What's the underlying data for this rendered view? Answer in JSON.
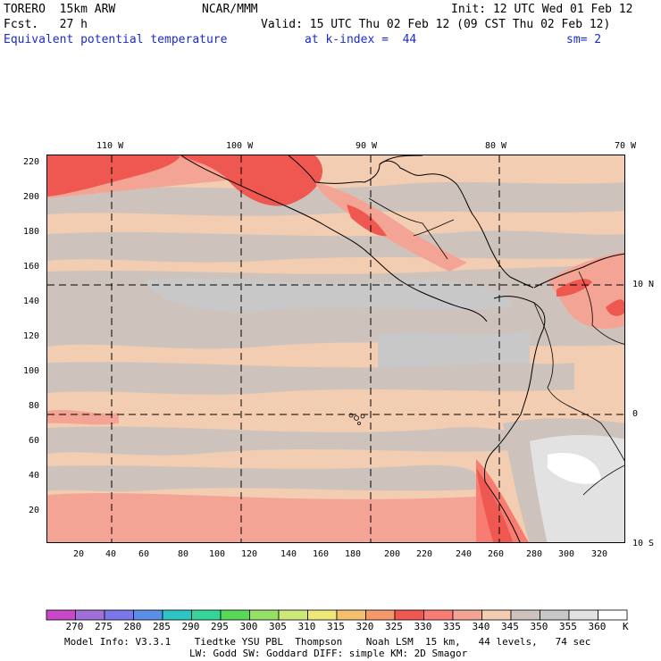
{
  "header": {
    "model": "TORERO  15km ARW",
    "org": "NCAR/MMM",
    "init": "Init: 12 UTC Wed 01 Feb 12",
    "fcst": "Fcst.   27 h",
    "valid": "Valid: 15 UTC Thu 02 Feb 12 (09 CST Thu 02 Feb 12)",
    "field": "Equivalent potential temperature",
    "level": "at k-index =  44",
    "smooth": "sm= 2"
  },
  "map": {
    "lon_labels": [
      "110 W",
      "100 W",
      "90 W",
      "80 W",
      "70 W"
    ],
    "lat_labels": [
      "10 N",
      "0",
      "10 S"
    ],
    "x_ticks": [
      "20",
      "40",
      "60",
      "80",
      "100",
      "120",
      "140",
      "160",
      "180",
      "200",
      "220",
      "240",
      "260",
      "280",
      "300",
      "320"
    ],
    "y_ticks": [
      "220",
      "200",
      "180",
      "160",
      "140",
      "120",
      "100",
      "80",
      "60",
      "40",
      "20"
    ]
  },
  "colorbar": {
    "labels": [
      "270",
      "275",
      "280",
      "285",
      "290",
      "295",
      "300",
      "305",
      "310",
      "315",
      "320",
      "325",
      "330",
      "335",
      "340",
      "345",
      "350",
      "355",
      "360"
    ],
    "unit": "K",
    "colors": [
      "#c848c8",
      "#a070d8",
      "#7a78e8",
      "#5a8ee8",
      "#2ec4c4",
      "#36d49a",
      "#58d858",
      "#96e068",
      "#cce878",
      "#eee878",
      "#f4c070",
      "#f49a6a",
      "#ee5850",
      "#f87c72",
      "#f4a494",
      "#f2cdb2",
      "#cdc3bc",
      "#c8c8c8",
      "#e2e2e2",
      "#ffffff"
    ]
  },
  "footer": {
    "line1": "Model Info: V3.3.1    Tiedtke YSU PBL  Thompson    Noah LSM  15 km,   44 levels,   74 sec",
    "line2": "LW: Godd SW: Goddard DIFF: simple KM: 2D Smagor"
  }
}
